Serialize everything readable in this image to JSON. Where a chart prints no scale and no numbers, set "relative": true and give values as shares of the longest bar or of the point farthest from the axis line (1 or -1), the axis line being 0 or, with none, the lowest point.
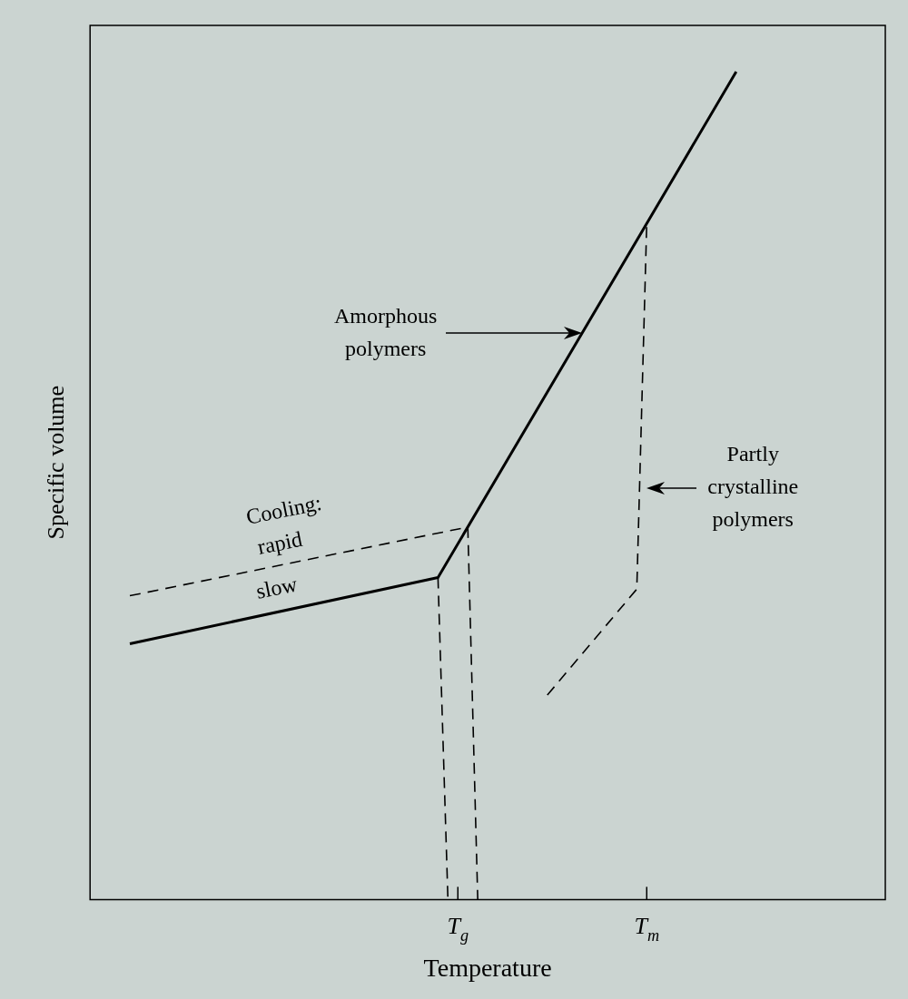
{
  "chart_data": {
    "type": "line",
    "relative": true,
    "xlabel": "Temperature",
    "ylabel": "Specific volume",
    "tick_labels": "x",
    "grid": false,
    "legend": false,
    "marker": "none",
    "categories": [
      null,
      null,
      null,
      null,
      null,
      null,
      null,
      null,
      null,
      null,
      null,
      null,
      null,
      null,
      null,
      null,
      null,
      null,
      null,
      null,
      null,
      null,
      null,
      null,
      null,
      null,
      null,
      null,
      null,
      null,
      null,
      null,
      null,
      null,
      null,
      null,
      null,
      "T$_{g}$",
      null,
      null,
      null,
      null,
      null,
      null,
      null,
      null,
      null,
      null,
      null,
      null,
      null,
      null,
      null,
      null,
      null,
      null,
      "T$_{m}$",
      null,
      null,
      null,
      null,
      null,
      null,
      null,
      null,
      null,
      null,
      null,
      null,
      null,
      null,
      null,
      null,
      null,
      null,
      null,
      null,
      null,
      null,
      null,
      null
    ],
    "series": [
      {
        "color": "#000000",
        "line_style": "solid",
        "values": [
          null,
          null,
          null,
          null,
          0.309,
          null,
          null,
          null,
          null,
          null,
          null,
          null,
          null,
          null,
          null,
          null,
          null,
          null,
          null,
          null,
          null,
          null,
          null,
          null,
          null,
          null,
          null,
          null,
          null,
          null,
          null,
          null,
          null,
          null,
          null,
          0.389,
          null,
          null,
          null,
          null,
          null,
          null,
          null,
          null,
          null,
          null,
          null,
          null,
          null,
          null,
          null,
          null,
          null,
          null,
          null,
          null,
          null,
          null,
          null,
          null,
          null,
          null,
          null,
          null,
          null,
          1,
          null,
          null,
          null,
          null,
          null,
          null,
          null,
          null,
          null,
          null,
          null,
          null,
          null,
          null,
          null
        ]
      },
      {
        "color": "#000000",
        "line_style": "dashed",
        "values": [
          null,
          null,
          null,
          null,
          0.367,
          null,
          null,
          null,
          null,
          null,
          null,
          null,
          null,
          null,
          null,
          null,
          null,
          null,
          null,
          null,
          null,
          null,
          null,
          null,
          null,
          null,
          null,
          null,
          null,
          null,
          null,
          null,
          null,
          null,
          null,
          null,
          null,
          null,
          0.45,
          null,
          null,
          null,
          null,
          null,
          null,
          null,
          null,
          null,
          null,
          null,
          null,
          null,
          null,
          null,
          null,
          null,
          null,
          null,
          null,
          null,
          null,
          null,
          null,
          null,
          null,
          null,
          null,
          null,
          null,
          null,
          null,
          null,
          null,
          null,
          null,
          null,
          null,
          null,
          null,
          null,
          null
        ]
      },
      {
        "color": "#000000",
        "line_style": "dashed",
        "values": [
          null,
          null,
          null,
          null,
          null,
          null,
          null,
          null,
          null,
          null,
          null,
          null,
          null,
          null,
          null,
          null,
          null,
          null,
          null,
          null,
          null,
          null,
          null,
          null,
          null,
          null,
          null,
          null,
          null,
          null,
          null,
          null,
          null,
          null,
          null,
          null,
          null,
          null,
          null,
          null,
          null,
          null,
          null,
          null,
          null,
          null,
          0.247,
          null,
          null,
          null,
          null,
          null,
          null,
          null,
          null,
          0.375,
          0.817,
          null,
          null,
          null,
          null,
          null,
          null,
          null,
          null,
          null,
          null,
          null,
          null,
          null,
          null,
          null,
          null,
          null,
          null,
          null,
          null,
          null,
          null,
          null,
          null
        ]
      },
      {
        "color": "#000000",
        "line_style": "dashed",
        "values": [
          null,
          null,
          null,
          null,
          null,
          null,
          null,
          null,
          null,
          null,
          null,
          null,
          null,
          null,
          null,
          null,
          null,
          null,
          null,
          null,
          null,
          null,
          null,
          null,
          null,
          null,
          null,
          null,
          null,
          null,
          null,
          null,
          null,
          null,
          null,
          0.389,
          0,
          null,
          null,
          null,
          null,
          null,
          null,
          null,
          null,
          null,
          null,
          null,
          null,
          null,
          null,
          null,
          null,
          null,
          null,
          null,
          null,
          null,
          null,
          null,
          null,
          null,
          null,
          null,
          null,
          null,
          null,
          null,
          null,
          null,
          null,
          null,
          null,
          null,
          null,
          null,
          null,
          null,
          null,
          null,
          null
        ]
      },
      {
        "color": "#000000",
        "line_style": "dashed",
        "values": [
          null,
          null,
          null,
          null,
          null,
          null,
          null,
          null,
          null,
          null,
          null,
          null,
          null,
          null,
          null,
          null,
          null,
          null,
          null,
          null,
          null,
          null,
          null,
          null,
          null,
          null,
          null,
          null,
          null,
          null,
          null,
          null,
          null,
          null,
          null,
          null,
          null,
          null,
          0.45,
          0,
          null,
          null,
          null,
          null,
          null,
          null,
          null,
          null,
          null,
          null,
          null,
          null,
          null,
          null,
          null,
          null,
          null,
          null,
          null,
          null,
          null,
          null,
          null,
          null,
          null,
          null,
          null,
          null,
          null,
          null,
          null,
          null,
          null,
          null,
          null,
          null,
          null,
          null,
          null,
          null,
          null
        ]
      }
    ],
    "annotations": [
      "Cooling:",
      "rapid",
      "slow",
      "Amorphous polymers",
      "Partly crystalline polymers"
    ]
  }
}
